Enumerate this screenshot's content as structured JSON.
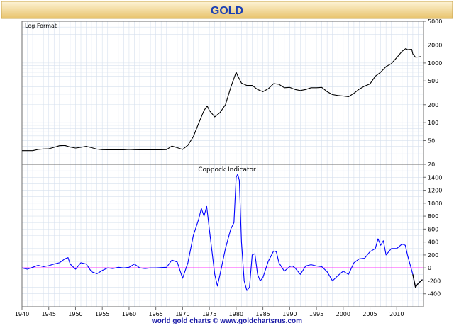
{
  "title": "GOLD",
  "footer": "world gold charts © www.goldchartsrus.com",
  "colors": {
    "background": "#ffffff",
    "frame": "#6d6d6d",
    "grid": "#d6e0ee",
    "title_bar_top": "#fdf3d6",
    "title_bar_bottom": "#e8c36c",
    "title_text": "#1a3fb4",
    "footer_text": "#1a1aa6",
    "price_line": "#000000",
    "coppock_line": "#0000ff",
    "zero_line": "#ff00ff",
    "recent_segment": "#000000"
  },
  "chart_data": [
    {
      "type": "line",
      "panel_label": "Log Format",
      "y_scale": "log",
      "yticks": [
        20,
        50,
        100,
        200,
        500,
        1000,
        2000,
        5000
      ],
      "ylim": [
        20,
        5000
      ],
      "xlim": [
        1940,
        2015
      ],
      "xticks": [
        1940,
        1945,
        1950,
        1955,
        1960,
        1965,
        1970,
        1975,
        1980,
        1985,
        1990,
        1995,
        2000,
        2005,
        2010
      ],
      "grid": true,
      "series": [
        {
          "values": [
            [
              1940,
              33.9
            ],
            [
              1941,
              33.9
            ],
            [
              1942,
              33.9
            ],
            [
              1943,
              35.5
            ],
            [
              1944,
              36.2
            ],
            [
              1945,
              36.5
            ],
            [
              1946,
              38.5
            ],
            [
              1947,
              41
            ],
            [
              1948,
              41.5
            ],
            [
              1949,
              39
            ],
            [
              1950,
              37.5
            ],
            [
              1951,
              38.5
            ],
            [
              1952,
              40
            ],
            [
              1953,
              38
            ],
            [
              1954,
              36
            ],
            [
              1955,
              35.2
            ],
            [
              1956,
              35
            ],
            [
              1957,
              35
            ],
            [
              1958,
              35
            ],
            [
              1959,
              35.1
            ],
            [
              1960,
              35.5
            ],
            [
              1961,
              35.2
            ],
            [
              1962,
              35.1
            ],
            [
              1963,
              35.1
            ],
            [
              1964,
              35.1
            ],
            [
              1965,
              35.1
            ],
            [
              1966,
              35.1
            ],
            [
              1967,
              35.3
            ],
            [
              1968,
              40.5
            ],
            [
              1969,
              38
            ],
            [
              1970,
              35.5
            ],
            [
              1971,
              42
            ],
            [
              1972,
              58
            ],
            [
              1973,
              97
            ],
            [
              1974,
              160
            ],
            [
              1974.6,
              190
            ],
            [
              1975,
              160
            ],
            [
              1976,
              125
            ],
            [
              1977,
              148
            ],
            [
              1978,
              200
            ],
            [
              1979,
              390
            ],
            [
              1980,
              700
            ],
            [
              1980.3,
              610
            ],
            [
              1981,
              460
            ],
            [
              1982,
              420
            ],
            [
              1983,
              420
            ],
            [
              1984,
              360
            ],
            [
              1985,
              330
            ],
            [
              1986,
              370
            ],
            [
              1987,
              450
            ],
            [
              1988,
              440
            ],
            [
              1989,
              385
            ],
            [
              1990,
              390
            ],
            [
              1991,
              360
            ],
            [
              1992,
              345
            ],
            [
              1993,
              360
            ],
            [
              1994,
              385
            ],
            [
              1995,
              385
            ],
            [
              1996,
              390
            ],
            [
              1997,
              330
            ],
            [
              1998,
              295
            ],
            [
              1999,
              285
            ],
            [
              2000,
              280
            ],
            [
              2001,
              272
            ],
            [
              2002,
              310
            ],
            [
              2003,
              365
            ],
            [
              2004,
              410
            ],
            [
              2005,
              445
            ],
            [
              2006,
              600
            ],
            [
              2007,
              700
            ],
            [
              2008,
              870
            ],
            [
              2009,
              975
            ],
            [
              2010,
              1230
            ],
            [
              2011,
              1570
            ],
            [
              2011.7,
              1750
            ],
            [
              2012,
              1670
            ],
            [
              2012.8,
              1700
            ],
            [
              2013,
              1420
            ],
            [
              2013.5,
              1250
            ],
            [
              2014,
              1260
            ],
            [
              2014.6,
              1280
            ]
          ]
        }
      ]
    },
    {
      "type": "line",
      "title": "Coppock Indicator",
      "yticks": [
        -400,
        -200,
        0,
        200,
        400,
        600,
        800,
        1000,
        1200,
        1400
      ],
      "ylim": [
        -600,
        1600
      ],
      "xlim": [
        1940,
        2015
      ],
      "xticks": [
        1940,
        1945,
        1950,
        1955,
        1960,
        1965,
        1970,
        1975,
        1980,
        1985,
        1990,
        1995,
        2000,
        2005,
        2010
      ],
      "xtick_labels": [
        "1940",
        "1945",
        "1950",
        "1955",
        "1960",
        "1965",
        "1970",
        "1975",
        "1980",
        "1985",
        "1990",
        "1995",
        "2000",
        "2005",
        "2010"
      ],
      "reference_line": 0,
      "grid": true,
      "series": [
        {
          "values": [
            [
              1940,
              0
            ],
            [
              1941,
              -20
            ],
            [
              1942,
              10
            ],
            [
              1943,
              40
            ],
            [
              1944,
              20
            ],
            [
              1945,
              35
            ],
            [
              1946,
              60
            ],
            [
              1947,
              80
            ],
            [
              1948,
              140
            ],
            [
              1948.6,
              160
            ],
            [
              1949,
              60
            ],
            [
              1950,
              -20
            ],
            [
              1951,
              80
            ],
            [
              1952,
              60
            ],
            [
              1953,
              -60
            ],
            [
              1954,
              -90
            ],
            [
              1955,
              -40
            ],
            [
              1956,
              0
            ],
            [
              1957,
              -10
            ],
            [
              1958,
              10
            ],
            [
              1959,
              0
            ],
            [
              1960,
              10
            ],
            [
              1961,
              60
            ],
            [
              1962,
              0
            ],
            [
              1963,
              -10
            ],
            [
              1964,
              0
            ],
            [
              1965,
              0
            ],
            [
              1966,
              5
            ],
            [
              1967,
              10
            ],
            [
              1968,
              120
            ],
            [
              1969,
              90
            ],
            [
              1970,
              -160
            ],
            [
              1971,
              80
            ],
            [
              1972,
              500
            ],
            [
              1973,
              750
            ],
            [
              1973.5,
              920
            ],
            [
              1974,
              800
            ],
            [
              1974.5,
              950
            ],
            [
              1975,
              600
            ],
            [
              1976,
              -100
            ],
            [
              1976.5,
              -280
            ],
            [
              1977,
              -100
            ],
            [
              1978,
              300
            ],
            [
              1979,
              600
            ],
            [
              1979.6,
              700
            ],
            [
              1980,
              1400
            ],
            [
              1980.3,
              1450
            ],
            [
              1980.6,
              1350
            ],
            [
              1981,
              400
            ],
            [
              1981.5,
              -200
            ],
            [
              1982,
              -350
            ],
            [
              1982.5,
              -300
            ],
            [
              1983,
              200
            ],
            [
              1983.5,
              220
            ],
            [
              1984,
              -100
            ],
            [
              1984.5,
              -200
            ],
            [
              1985,
              -150
            ],
            [
              1986,
              100
            ],
            [
              1987,
              260
            ],
            [
              1987.5,
              250
            ],
            [
              1988,
              80
            ],
            [
              1989,
              -50
            ],
            [
              1990,
              20
            ],
            [
              1990.5,
              30
            ],
            [
              1991,
              0
            ],
            [
              1992,
              -100
            ],
            [
              1993,
              30
            ],
            [
              1994,
              50
            ],
            [
              1995,
              30
            ],
            [
              1996,
              20
            ],
            [
              1997,
              -60
            ],
            [
              1998,
              -200
            ],
            [
              1999,
              -120
            ],
            [
              2000,
              -50
            ],
            [
              2001,
              -100
            ],
            [
              2002,
              80
            ],
            [
              2003,
              140
            ],
            [
              2004,
              150
            ],
            [
              2005,
              250
            ],
            [
              2006,
              300
            ],
            [
              2006.5,
              450
            ],
            [
              2007,
              350
            ],
            [
              2007.5,
              420
            ],
            [
              2008,
              200
            ],
            [
              2009,
              300
            ],
            [
              2010,
              300
            ],
            [
              2011,
              370
            ],
            [
              2011.6,
              350
            ],
            [
              2012,
              200
            ],
            [
              2013,
              -100
            ],
            [
              2013.5,
              -300
            ],
            [
              2014,
              -240
            ],
            [
              2014.8,
              -180
            ]
          ]
        }
      ]
    }
  ]
}
